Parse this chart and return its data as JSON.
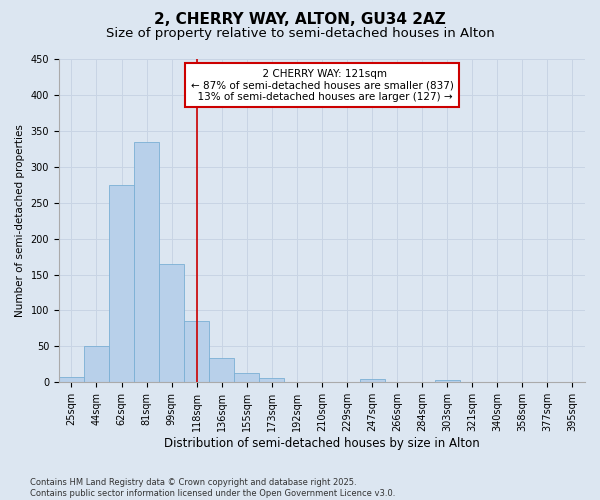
{
  "title": "2, CHERRY WAY, ALTON, GU34 2AZ",
  "subtitle": "Size of property relative to semi-detached houses in Alton",
  "xlabel": "Distribution of semi-detached houses by size in Alton",
  "ylabel": "Number of semi-detached properties",
  "categories": [
    "25sqm",
    "44sqm",
    "62sqm",
    "81sqm",
    "99sqm",
    "118sqm",
    "136sqm",
    "155sqm",
    "173sqm",
    "192sqm",
    "210sqm",
    "229sqm",
    "247sqm",
    "266sqm",
    "284sqm",
    "303sqm",
    "321sqm",
    "340sqm",
    "358sqm",
    "377sqm",
    "395sqm"
  ],
  "values": [
    7,
    50,
    275,
    335,
    165,
    85,
    34,
    13,
    6,
    1,
    0,
    0,
    4,
    0,
    0,
    3,
    0,
    0,
    0,
    0,
    0
  ],
  "bar_color": "#b8d0ea",
  "bar_edge_color": "#7bafd4",
  "property_label": "2 CHERRY WAY: 121sqm",
  "pct_smaller": 87,
  "pct_larger": 13,
  "n_smaller": 837,
  "n_larger": 127,
  "annotation_box_color": "#ffffff",
  "annotation_box_edge_color": "#cc0000",
  "vline_color": "#cc0000",
  "vline_x_index": 5,
  "ylim": [
    0,
    450
  ],
  "yticks": [
    0,
    50,
    100,
    150,
    200,
    250,
    300,
    350,
    400,
    450
  ],
  "grid_color": "#c8d4e4",
  "bg_color": "#dce6f1",
  "footnote": "Contains HM Land Registry data © Crown copyright and database right 2025.\nContains public sector information licensed under the Open Government Licence v3.0.",
  "title_fontsize": 11,
  "subtitle_fontsize": 9.5,
  "xlabel_fontsize": 8.5,
  "ylabel_fontsize": 7.5,
  "tick_fontsize": 7,
  "annot_fontsize": 7.5,
  "footnote_fontsize": 6
}
